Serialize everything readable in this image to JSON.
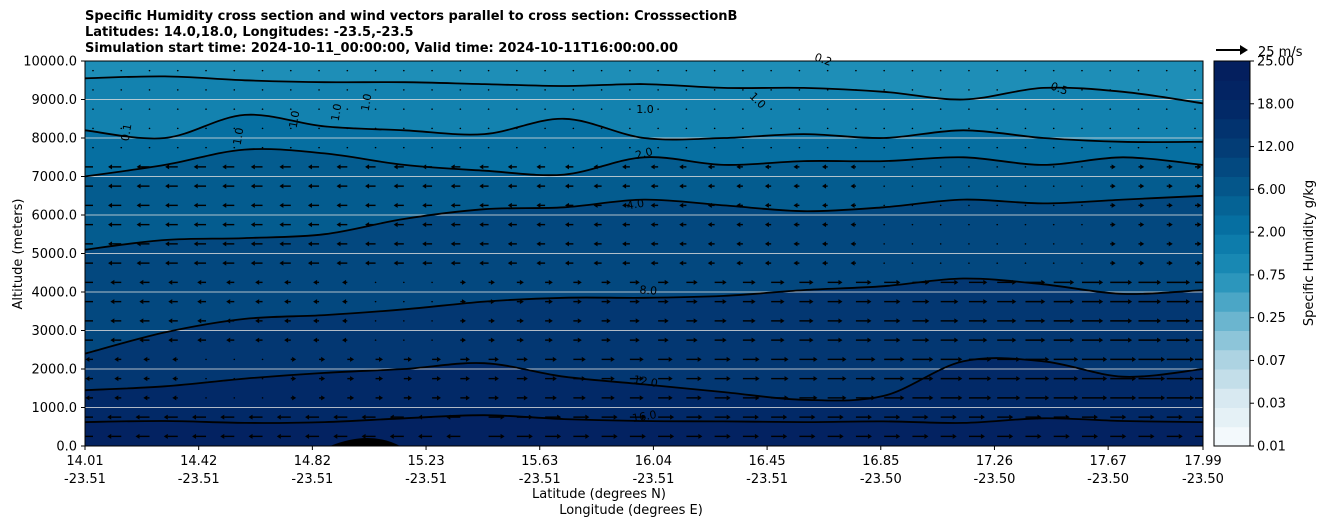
{
  "chart_data": {
    "type": "contour",
    "title_lines": [
      "Specific Humidity cross section and wind vectors parallel to cross section: CrosssectionB",
      "Latitudes: 14.0,18.0, Longitudes: -23.5,-23.5",
      "Simulation start time: 2024-10-11_00:00:00, Valid time: 2024-10-11T16:00:00.00"
    ],
    "ylabel": "Altitude (meters)",
    "xlabel_lines": [
      "Latitude (degrees N)",
      "Longitude (degrees E)"
    ],
    "ylim": [
      0,
      10000
    ],
    "yticks": [
      "0.0",
      "1000.0",
      "2000.0",
      "3000.0",
      "4000.0",
      "5000.0",
      "6000.0",
      "7000.0",
      "8000.0",
      "9000.0",
      "10000.0"
    ],
    "xticks": [
      {
        "lat": "14.01",
        "lon": "-23.51"
      },
      {
        "lat": "14.42",
        "lon": "-23.51"
      },
      {
        "lat": "14.82",
        "lon": "-23.51"
      },
      {
        "lat": "15.23",
        "lon": "-23.51"
      },
      {
        "lat": "15.63",
        "lon": "-23.51"
      },
      {
        "lat": "16.04",
        "lon": "-23.51"
      },
      {
        "lat": "16.45",
        "lon": "-23.51"
      },
      {
        "lat": "16.85",
        "lon": "-23.50"
      },
      {
        "lat": "17.26",
        "lon": "-23.50"
      },
      {
        "lat": "17.67",
        "lon": "-23.50"
      },
      {
        "lat": "17.99",
        "lon": "-23.50"
      }
    ],
    "grid": "horizontal",
    "colorbar": {
      "label": "Specific Humidity g/kg",
      "tick_labels": [
        "0.01",
        "0.03",
        "0.07",
        "0.25",
        "0.75",
        "2.00",
        "6.00",
        "12.00",
        "18.00",
        "25.00"
      ],
      "n_levels": 20,
      "colormap": "PuBu",
      "low_color": "#f3f9fc",
      "high_color": "#041f5e"
    },
    "quiver_key": "25 m/s",
    "contour_labels": [
      "0.1",
      "1.0",
      "1.0",
      "1.0",
      "1.0",
      "1.0",
      "1.0",
      "0.2",
      "0.5",
      "2.0",
      "4.0",
      "8.0",
      "12.0",
      "16.0"
    ],
    "contours": [
      {
        "label": "16.0",
        "alt": [
          620,
          650,
          600,
          620,
          720,
          800,
          700,
          650,
          640,
          620,
          640,
          600,
          720,
          650,
          620
        ]
      },
      {
        "label": "12.0",
        "alt": [
          1450,
          1550,
          1750,
          1900,
          2000,
          2150,
          1800,
          1600,
          1400,
          1200,
          1300,
          2200,
          2200,
          1800,
          2000
        ]
      },
      {
        "label": "8.0",
        "alt": [
          2400,
          2950,
          3300,
          3400,
          3550,
          3750,
          3850,
          3850,
          3900,
          4050,
          4150,
          4350,
          4200,
          3950,
          4050
        ]
      },
      {
        "label": "4.0",
        "alt": [
          5100,
          5350,
          5400,
          5500,
          5900,
          6150,
          6200,
          6400,
          6250,
          6100,
          6200,
          6400,
          6300,
          6400,
          6500
        ]
      },
      {
        "label": "2.0",
        "alt": [
          7000,
          7300,
          7700,
          7600,
          7300,
          7150,
          7050,
          7500,
          7300,
          7400,
          7400,
          7500,
          7300,
          7500,
          7300
        ]
      },
      {
        "label": "1.0",
        "alt": [
          8200,
          8000,
          8600,
          8300,
          8200,
          8100,
          8500,
          8000,
          8000,
          8100,
          8000,
          8200,
          8000,
          7900,
          7900
        ]
      },
      {
        "label": "0.5",
        "alt": [
          9550,
          9600,
          9500,
          9450,
          9450,
          9400,
          9350,
          9400,
          9300,
          9300,
          9200,
          9000,
          9300,
          9200,
          8900
        ]
      }
    ]
  }
}
